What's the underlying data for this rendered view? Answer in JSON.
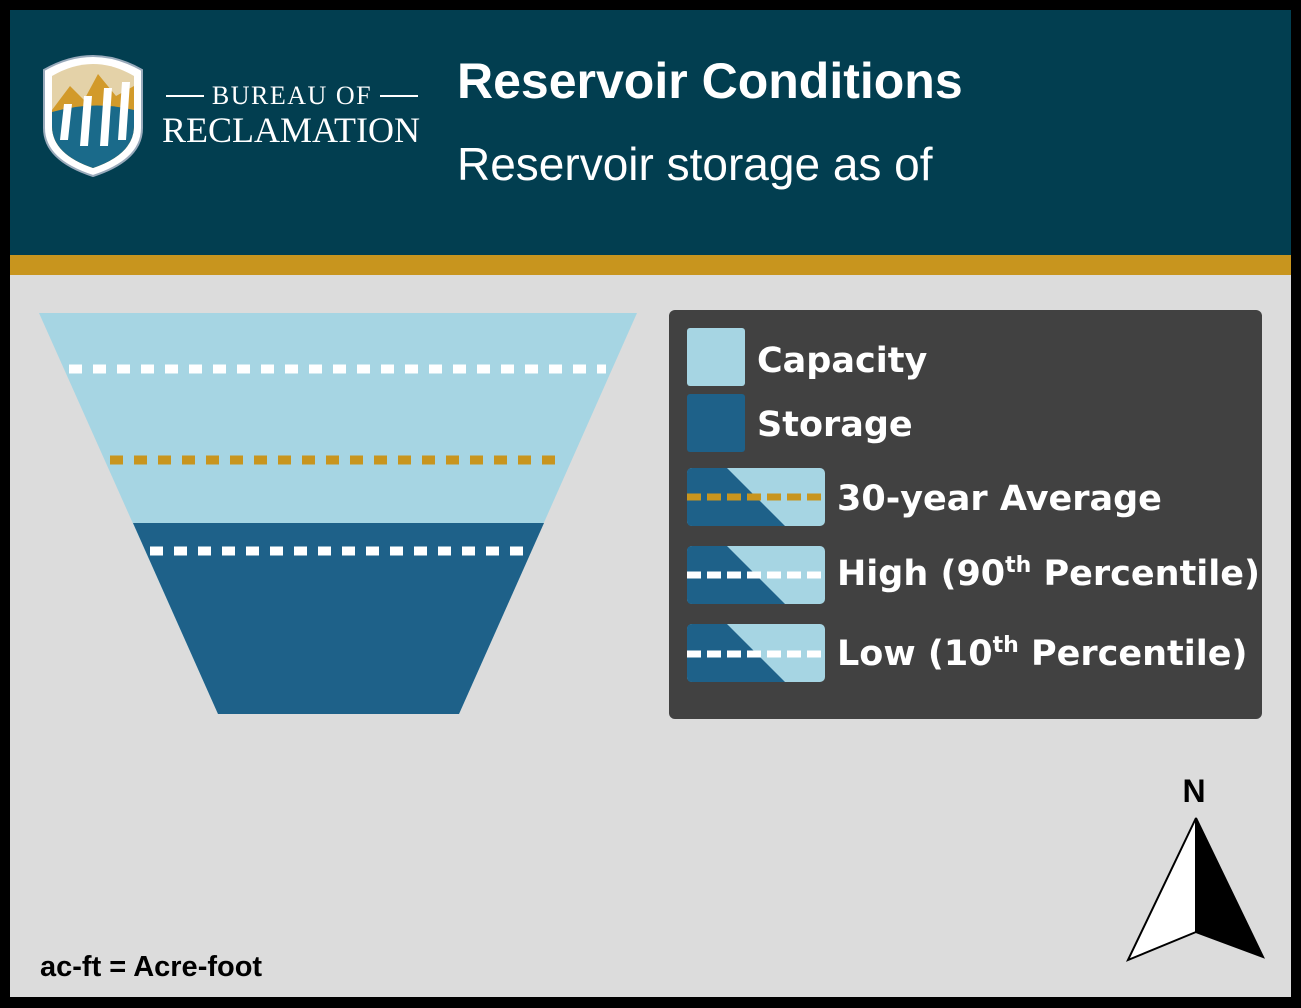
{
  "header": {
    "org_line1": "BUREAU OF",
    "org_line2": "RECLAMATION",
    "title": "Reservoir Conditions",
    "subtitle": "Reservoir storage as of"
  },
  "legend": {
    "items": [
      {
        "text": "Capacity"
      },
      {
        "text": "Storage"
      },
      {
        "text": "30-year Average"
      },
      {
        "text": "High (90",
        "sup": "th",
        "rest": " Percentile)"
      },
      {
        "text": "Low (10",
        "sup": "th",
        "rest": " Percentile)"
      }
    ]
  },
  "compass": {
    "label": "N"
  },
  "footnote": "ac-ft = Acre-foot"
}
